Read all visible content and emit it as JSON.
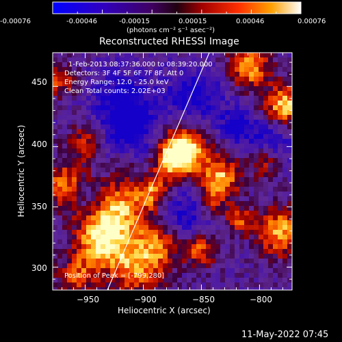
{
  "colorbar": {
    "ticks": [
      "-0.00076",
      "-0.00046",
      "-0.00015",
      "0.00015",
      "0.00046",
      "0.00076"
    ],
    "units": "(photons cm⁻² s⁻¹ asec⁻²)"
  },
  "plot": {
    "title": "Reconstructed RHESSI Image",
    "xlabel": "Heliocentric X (arcsec)",
    "ylabel": "Heliocentric Y (arcsec)",
    "xticks": [
      "−950",
      "−900",
      "−850",
      "−800"
    ],
    "yticks": [
      "450",
      "400",
      "350",
      "300"
    ],
    "xlim": [
      -978,
      -772
    ],
    "ylim": [
      281,
      478
    ]
  },
  "annotations": {
    "time_range": "1-Feb-2013 08:37:36.000 to 08:39:20.000",
    "detectors": "Detectors: 3F 4F 5F 6F 7F 8F, Att 0",
    "energy": "Energy Range: 12.0 - 25.0 keV",
    "clean": "Clean    Total counts: 2.02E+03",
    "peak": "Position of Peak = [-799,280]"
  },
  "footer": {
    "date": "11-May-2022 07:45"
  }
}
